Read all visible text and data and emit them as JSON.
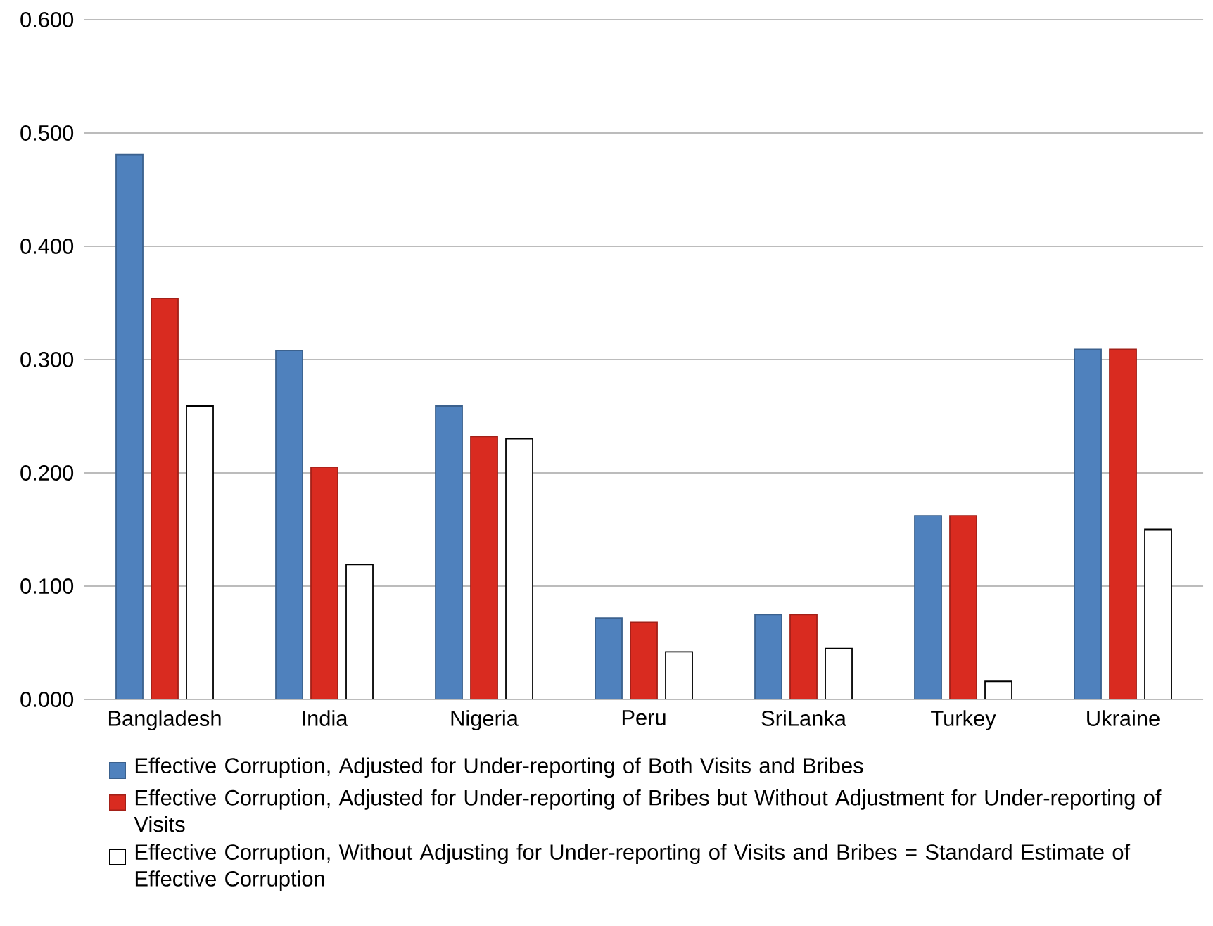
{
  "chart_data": {
    "type": "bar",
    "categories": [
      "Bangladesh",
      "India",
      "Nigeria",
      "Peru",
      "SriLanka",
      "Turkey",
      "Ukraine"
    ],
    "series": [
      {
        "name": "Effective Corruption, Adjusted for Under-reporting of Both Visits and Bribes",
        "color": "#4f81bd",
        "values": [
          0.481,
          0.308,
          0.259,
          0.072,
          0.075,
          0.162,
          0.309
        ]
      },
      {
        "name": "Effective Corruption, Adjusted for Under-reporting of Bribes but Without Adjustment for Under-reporting of Visits",
        "color": "#d92b20",
        "values": [
          0.354,
          0.205,
          0.232,
          0.068,
          0.075,
          0.162,
          0.309
        ]
      },
      {
        "name": "Effective Corruption, Without Adjusting for Under-reporting of Visits and Bribes = Standard Estimate of Effective Corruption",
        "color": "#ffffff",
        "values": [
          0.259,
          0.119,
          0.23,
          0.042,
          0.045,
          0.016,
          0.15
        ]
      }
    ],
    "ylim": [
      0,
      0.6
    ],
    "yticks": [
      {
        "value": 0,
        "label": "0.000"
      },
      {
        "value": 0.1,
        "label": "0.100"
      },
      {
        "value": 0.2,
        "label": "0.200"
      },
      {
        "value": 0.3,
        "label": "0.300"
      },
      {
        "value": 0.4,
        "label": "0.400"
      },
      {
        "value": 0.5,
        "label": "0.500"
      },
      {
        "value": 0.6,
        "label": "0.600"
      }
    ],
    "grid": "y",
    "legend": "bottom"
  }
}
